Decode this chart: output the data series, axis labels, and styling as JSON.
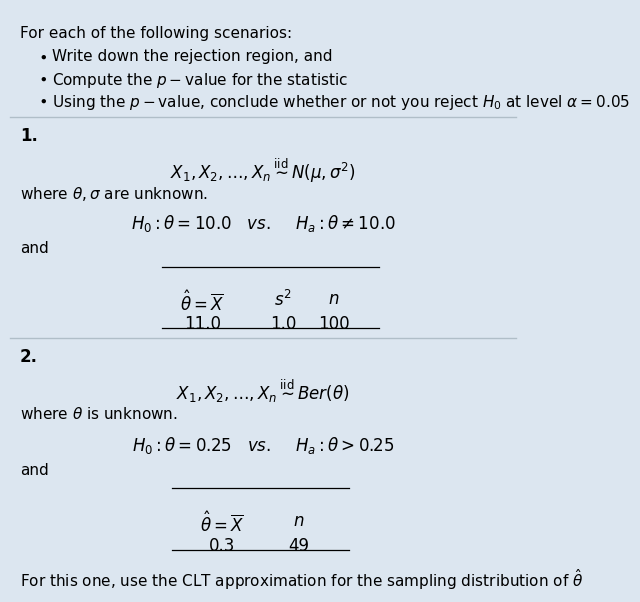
{
  "bg_color": "#dce6f0",
  "text_color": "#000000",
  "fig_width": 6.53,
  "fig_height": 7.05,
  "header_text": "For each of the following scenarios:",
  "bullets": [
    "Write down the rejection region, and",
    "Compute the $p-$value for the statistic",
    "Using the $p-$value, conclude whether or not you reject $H_0$ at level $\\alpha = 0.05$"
  ],
  "section1_label": "1.",
  "section1_dist": "$X_1, X_2, \\ldots, X_n \\overset{\\mathrm{iid}}{\\sim} N(\\mu, \\sigma^2)$",
  "section1_where": "where $\\theta, \\sigma$ are unknown.",
  "section1_hyp": "$H_0 : \\theta = 10.0$   $vs.$    $H_a : \\theta \\neq 10.0$",
  "section1_and": "and",
  "section1_col1_header": "$\\hat{\\theta} = \\overline{X}$",
  "section1_col2_header": "$s^2$",
  "section1_col3_header": "$n$",
  "section1_col1_val": "11.0",
  "section1_col2_val": "1.0",
  "section1_col3_val": "100",
  "section2_label": "2.",
  "section2_dist": "$X_1, X_2, \\ldots, X_n \\overset{\\mathrm{iid}}{\\sim} Ber(\\theta)$",
  "section2_where": "where $\\theta$ is unknown.",
  "section2_hyp": "$H_0 : \\theta = 0.25$   $vs.$    $H_a : \\theta > 0.25$",
  "section2_and": "and",
  "section2_col1_header": "$\\hat{\\theta} = \\overline{X}$",
  "section2_col2_header": "$n$",
  "section2_col1_val": "0.3",
  "section2_col2_val": "49",
  "footer_text": "For this one, use the CLT approximation for the sampling distribution of $\\hat{\\theta}$",
  "separator_color": "#b0bec8",
  "table_line_color": "#000000"
}
